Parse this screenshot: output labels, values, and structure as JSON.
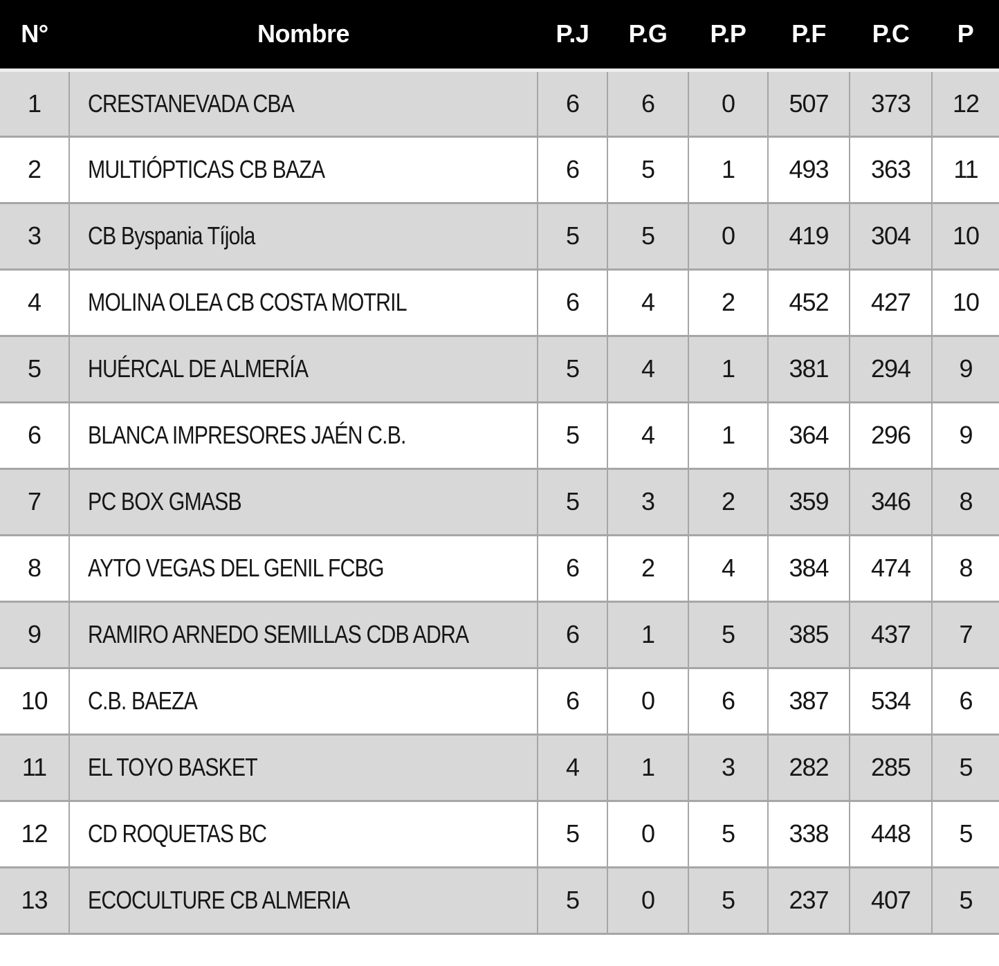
{
  "colors": {
    "header_bg": "#000000",
    "header_text": "#ffffff",
    "row_shaded": "#d8d8d8",
    "row_plain": "#ffffff",
    "grid_border": "#a6a6a6",
    "header_gap": "#ededed",
    "text": "#161616"
  },
  "table": {
    "columns": [
      {
        "key": "pos",
        "label": "N°"
      },
      {
        "key": "name",
        "label": "Nombre"
      },
      {
        "key": "pj",
        "label": "P.J"
      },
      {
        "key": "pg",
        "label": "P.G"
      },
      {
        "key": "pp",
        "label": "P.P"
      },
      {
        "key": "pf",
        "label": "P.F"
      },
      {
        "key": "pc",
        "label": "P.C"
      },
      {
        "key": "pts",
        "label": "P"
      }
    ],
    "rows": [
      {
        "pos": "1",
        "name": "CRESTANEVADA CBA",
        "pj": "6",
        "pg": "6",
        "pp": "0",
        "pf": "507",
        "pc": "373",
        "pts": "12"
      },
      {
        "pos": "2",
        "name": "MULTIÓPTICAS CB BAZA",
        "pj": "6",
        "pg": "5",
        "pp": "1",
        "pf": "493",
        "pc": "363",
        "pts": "11"
      },
      {
        "pos": "3",
        "name": "CB Byspania Tíjola",
        "pj": "5",
        "pg": "5",
        "pp": "0",
        "pf": "419",
        "pc": "304",
        "pts": "10"
      },
      {
        "pos": "4",
        "name": "MOLINA OLEA CB COSTA MOTRIL",
        "pj": "6",
        "pg": "4",
        "pp": "2",
        "pf": "452",
        "pc": "427",
        "pts": "10"
      },
      {
        "pos": "5",
        "name": "HUÉRCAL DE ALMERÍA",
        "pj": "5",
        "pg": "4",
        "pp": "1",
        "pf": "381",
        "pc": "294",
        "pts": "9"
      },
      {
        "pos": "6",
        "name": "BLANCA IMPRESORES JAÉN C.B.",
        "pj": "5",
        "pg": "4",
        "pp": "1",
        "pf": "364",
        "pc": "296",
        "pts": "9"
      },
      {
        "pos": "7",
        "name": "PC BOX GMASB",
        "pj": "5",
        "pg": "3",
        "pp": "2",
        "pf": "359",
        "pc": "346",
        "pts": "8"
      },
      {
        "pos": "8",
        "name": "AYTO VEGAS DEL GENIL FCBG",
        "pj": "6",
        "pg": "2",
        "pp": "4",
        "pf": "384",
        "pc": "474",
        "pts": "8"
      },
      {
        "pos": "9",
        "name": "RAMIRO ARNEDO SEMILLAS CDB ADRA",
        "pj": "6",
        "pg": "1",
        "pp": "5",
        "pf": "385",
        "pc": "437",
        "pts": "7"
      },
      {
        "pos": "10",
        "name": "C.B. BAEZA",
        "pj": "6",
        "pg": "0",
        "pp": "6",
        "pf": "387",
        "pc": "534",
        "pts": "6"
      },
      {
        "pos": "11",
        "name": "EL TOYO BASKET",
        "pj": "4",
        "pg": "1",
        "pp": "3",
        "pf": "282",
        "pc": "285",
        "pts": "5"
      },
      {
        "pos": "12",
        "name": "CD ROQUETAS BC",
        "pj": "5",
        "pg": "0",
        "pp": "5",
        "pf": "338",
        "pc": "448",
        "pts": "5"
      },
      {
        "pos": "13",
        "name": "ECOCULTURE CB ALMERIA",
        "pj": "5",
        "pg": "0",
        "pp": "5",
        "pf": "237",
        "pc": "407",
        "pts": "5"
      }
    ]
  },
  "chart_data": {
    "type": "table",
    "title": "",
    "columns": [
      "N°",
      "Nombre",
      "P.J",
      "P.G",
      "P.P",
      "P.F",
      "P.C",
      "P"
    ],
    "rows": [
      [
        1,
        "CRESTANEVADA CBA",
        6,
        6,
        0,
        507,
        373,
        12
      ],
      [
        2,
        "MULTIÓPTICAS CB BAZA",
        6,
        5,
        1,
        493,
        363,
        11
      ],
      [
        3,
        "CB Byspania Tíjola",
        5,
        5,
        0,
        419,
        304,
        10
      ],
      [
        4,
        "MOLINA OLEA CB COSTA MOTRIL",
        6,
        4,
        2,
        452,
        427,
        10
      ],
      [
        5,
        "HUÉRCAL DE ALMERÍA",
        5,
        4,
        1,
        381,
        294,
        9
      ],
      [
        6,
        "BLANCA IMPRESORES JAÉN C.B.",
        5,
        4,
        1,
        364,
        296,
        9
      ],
      [
        7,
        "PC BOX GMASB",
        5,
        3,
        2,
        359,
        346,
        8
      ],
      [
        8,
        "AYTO VEGAS DEL GENIL FCBG",
        6,
        2,
        4,
        384,
        474,
        8
      ],
      [
        9,
        "RAMIRO ARNEDO SEMILLAS CDB ADRA",
        6,
        1,
        5,
        385,
        437,
        7
      ],
      [
        10,
        "C.B. BAEZA",
        6,
        0,
        6,
        387,
        534,
        6
      ],
      [
        11,
        "EL TOYO BASKET",
        4,
        1,
        3,
        282,
        285,
        5
      ],
      [
        12,
        "CD ROQUETAS BC",
        5,
        0,
        5,
        338,
        448,
        5
      ],
      [
        13,
        "ECOCULTURE CB ALMERIA",
        5,
        0,
        5,
        237,
        407,
        5
      ]
    ],
    "layout_hints": {
      "zebra_striping": "odd rows shaded gray, even rows white",
      "header_style": "black background, white bold text",
      "grid": true
    }
  }
}
